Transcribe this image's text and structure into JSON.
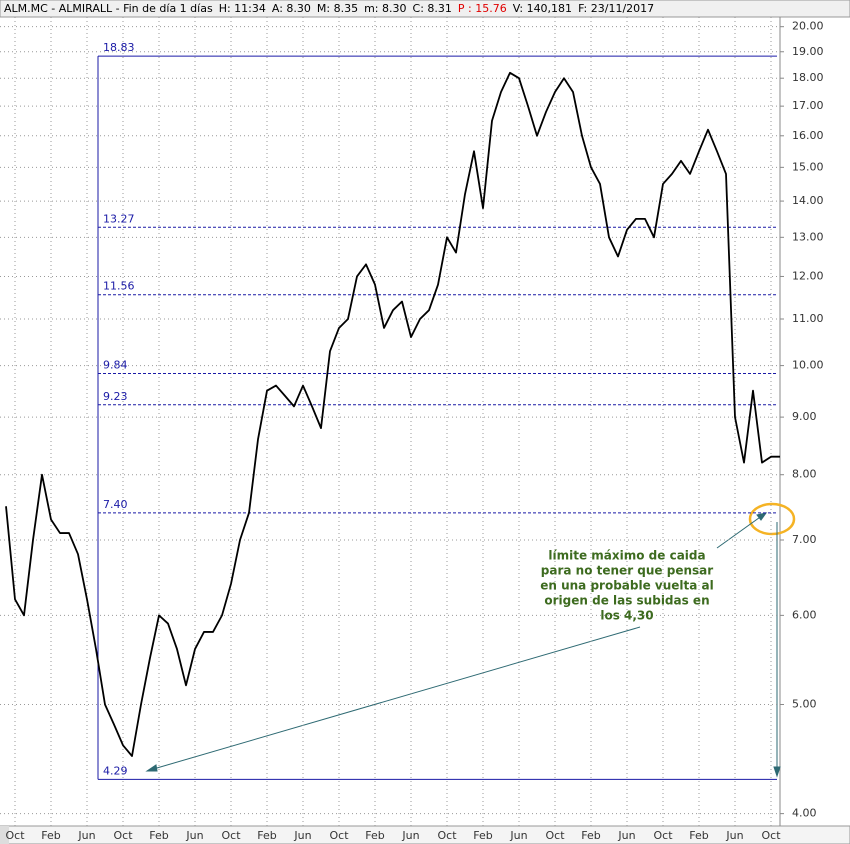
{
  "chart_data": {
    "type": "line",
    "color": "#000000",
    "log_scale": true,
    "grid": true,
    "header": {
      "symbol": "ALM.MC - ALMIRALL - Fin de día 1 días",
      "fields": [
        "H: 11:34",
        "A: 8.30",
        "M: 8.35",
        "m: 8.30",
        "C: 8.31",
        "P : 15.76",
        "V: 140,181",
        "F: 23/11/2017"
      ],
      "highlight_color": "#e00000"
    },
    "categories": [
      null,
      "Oct",
      null,
      null,
      null,
      "Feb",
      null,
      null,
      null,
      "Jun",
      null,
      null,
      null,
      "Oct",
      null,
      null,
      null,
      "Feb",
      null,
      null,
      null,
      "Jun",
      null,
      null,
      null,
      "Oct",
      null,
      null,
      null,
      "Feb",
      null,
      null,
      null,
      "Jun",
      null,
      null,
      null,
      "Oct",
      null,
      null,
      null,
      "Feb",
      null,
      null,
      null,
      "Jun",
      null,
      null,
      null,
      "Oct",
      null,
      null,
      null,
      "Feb",
      null,
      null,
      null,
      "Jun",
      null,
      null,
      null,
      "Oct",
      null,
      null,
      null,
      "Feb",
      null,
      null,
      null,
      "Jun",
      null,
      null,
      null,
      "Oct",
      null,
      null,
      null,
      "Feb",
      null,
      null,
      null,
      "Jun",
      null,
      null,
      null,
      "Oct",
      null
    ],
    "values": [
      7.5,
      6.2,
      6.0,
      7.0,
      8.0,
      7.3,
      7.1,
      7.1,
      6.8,
      6.2,
      5.6,
      5.0,
      4.8,
      4.6,
      4.5,
      5.0,
      5.5,
      6.0,
      5.9,
      5.6,
      5.2,
      5.6,
      5.8,
      5.8,
      6.0,
      6.4,
      7.0,
      7.4,
      8.6,
      9.5,
      9.6,
      9.4,
      9.2,
      9.6,
      9.2,
      8.8,
      10.3,
      10.8,
      11.0,
      12.0,
      12.3,
      11.8,
      10.8,
      11.2,
      11.4,
      10.6,
      11.0,
      11.2,
      11.8,
      13.0,
      12.6,
      14.2,
      15.5,
      13.8,
      16.5,
      17.5,
      18.2,
      18.0,
      17.0,
      16.0,
      16.8,
      17.5,
      18.0,
      17.5,
      16.0,
      15.0,
      14.5,
      13.0,
      12.5,
      13.2,
      13.5,
      13.5,
      13.0,
      14.5,
      14.8,
      15.2,
      14.8,
      15.5,
      16.2,
      15.5,
      14.8,
      9.0,
      8.2,
      9.5,
      8.2,
      8.3,
      8.3
    ],
    "ylim": [
      3.9,
      20.4
    ],
    "yticks": [
      {
        "value": 4,
        "label": "4.00"
      },
      {
        "value": 5,
        "label": "5.00"
      },
      {
        "value": 6,
        "label": "6.00"
      },
      {
        "value": 7,
        "label": "7.00"
      },
      {
        "value": 8,
        "label": "8.00"
      },
      {
        "value": 9,
        "label": "9.00"
      },
      {
        "value": 10,
        "label": "10.00"
      },
      {
        "value": 11,
        "label": "11.00"
      },
      {
        "value": 12,
        "label": "12.00"
      },
      {
        "value": 13,
        "label": "13.00"
      },
      {
        "value": 14,
        "label": "14.00"
      },
      {
        "value": 15,
        "label": "15.00"
      },
      {
        "value": 16,
        "label": "16.00"
      },
      {
        "value": 17,
        "label": "17.00"
      },
      {
        "value": 18,
        "label": "18.00"
      },
      {
        "value": 19,
        "label": "19.00"
      },
      {
        "value": 20,
        "label": "20.00"
      }
    ],
    "levels": [
      18.83,
      13.27,
      11.56,
      9.84,
      9.23,
      {
        "value": 7.4,
        "label": "7.40"
      },
      4.29
    ],
    "level_color": "#1a1aa6",
    "annotation": [
      "límite máximo de caida",
      "para no tener que pensar",
      "en una probable vuelta al",
      "origen de las subidas en",
      "los 4,30"
    ],
    "annotation_color": "#3d6b1f"
  }
}
